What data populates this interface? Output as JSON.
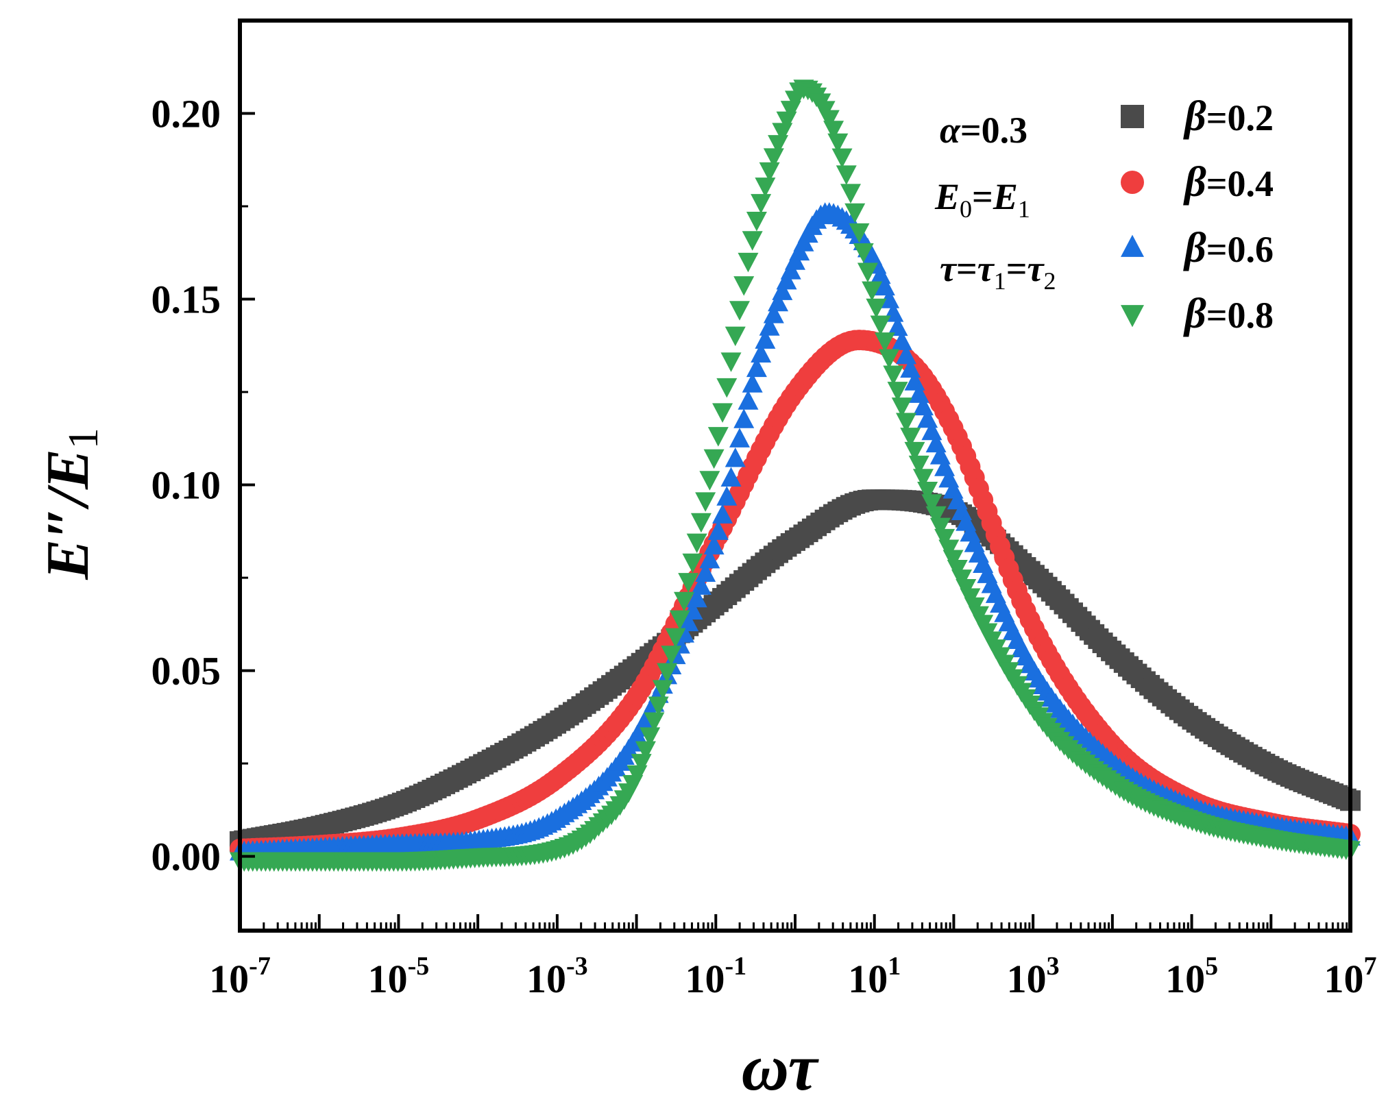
{
  "chart_data": {
    "type": "scatter",
    "title": "",
    "xlabel": "ωτ",
    "ylabel": "E″/E1",
    "xscale": "log10",
    "xlim_exp": [
      -7,
      7
    ],
    "ylim": [
      -0.02,
      0.225
    ],
    "x_ticks": [
      {
        "base": "10",
        "exp": "-7",
        "value_exp": -7
      },
      {
        "base": "10",
        "exp": "-5",
        "value_exp": -5
      },
      {
        "base": "10",
        "exp": "-3",
        "value_exp": -3
      },
      {
        "base": "10",
        "exp": "-1",
        "value_exp": -1
      },
      {
        "base": "10",
        "exp": "1",
        "value_exp": 1
      },
      {
        "base": "10",
        "exp": "3",
        "value_exp": 3
      },
      {
        "base": "10",
        "exp": "5",
        "value_exp": 5
      },
      {
        "base": "10",
        "exp": "7",
        "value_exp": 7
      }
    ],
    "y_ticks": [
      {
        "label": "0.00",
        "value": 0.0
      },
      {
        "label": "0.05",
        "value": 0.05
      },
      {
        "label": "0.10",
        "value": 0.1
      },
      {
        "label": "0.15",
        "value": 0.15
      },
      {
        "label": "0.20",
        "value": 0.2
      }
    ],
    "legend_position": "top-right",
    "annotations": {
      "alpha": {
        "symbol": "α",
        "text": "=0.3"
      },
      "moduli": {
        "a": "E",
        "a_sub": "0",
        "eq": "=",
        "b": "E",
        "b_sub": "1"
      },
      "tau": {
        "a": "τ",
        "eq1": "=",
        "b": "τ",
        "b_sub": "1",
        "eq2": "=",
        "c": "τ",
        "c_sub": "2"
      }
    },
    "series": [
      {
        "name": "β=0.2",
        "symbol": "β",
        "value_text": "=0.2",
        "marker": "square",
        "color": "#4a4a4a",
        "points": [
          [
            -7,
            0.004
          ],
          [
            -6,
            0.008
          ],
          [
            -5,
            0.014
          ],
          [
            -4,
            0.024
          ],
          [
            -3,
            0.036
          ],
          [
            -2,
            0.051
          ],
          [
            -1,
            0.068
          ],
          [
            0,
            0.085
          ],
          [
            1,
            0.096
          ],
          [
            2,
            0.093
          ],
          [
            3,
            0.076
          ],
          [
            4,
            0.055
          ],
          [
            5,
            0.037
          ],
          [
            6,
            0.024
          ],
          [
            7,
            0.015
          ]
        ]
      },
      {
        "name": "β=0.4",
        "symbol": "β",
        "value_text": "=0.4",
        "marker": "circle",
        "color": "#ef3e3e",
        "points": [
          [
            -7,
            0.002
          ],
          [
            -6,
            0.003
          ],
          [
            -5,
            0.005
          ],
          [
            -4,
            0.01
          ],
          [
            -3,
            0.021
          ],
          [
            -2,
            0.043
          ],
          [
            -1,
            0.085
          ],
          [
            0,
            0.125
          ],
          [
            0.8,
            0.139
          ],
          [
            1.5,
            0.132
          ],
          [
            2,
            0.115
          ],
          [
            3,
            0.062
          ],
          [
            4,
            0.03
          ],
          [
            5,
            0.015
          ],
          [
            6,
            0.009
          ],
          [
            7,
            0.006
          ]
        ]
      },
      {
        "name": "β=0.6",
        "symbol": "β",
        "value_text": "=0.6",
        "marker": "triangle-up",
        "color": "#1a6fdf",
        "points": [
          [
            -7,
            0.001
          ],
          [
            -6,
            0.002
          ],
          [
            -5,
            0.003
          ],
          [
            -4,
            0.004
          ],
          [
            -3,
            0.01
          ],
          [
            -2,
            0.032
          ],
          [
            -1,
            0.085
          ],
          [
            -0.5,
            0.13
          ],
          [
            0,
            0.16
          ],
          [
            0.4,
            0.173
          ],
          [
            1,
            0.16
          ],
          [
            1.5,
            0.128
          ],
          [
            2,
            0.098
          ],
          [
            3,
            0.05
          ],
          [
            4,
            0.025
          ],
          [
            5,
            0.013
          ],
          [
            6,
            0.008
          ],
          [
            7,
            0.005
          ]
        ]
      },
      {
        "name": "β=0.8",
        "symbol": "β",
        "value_text": "=0.8",
        "marker": "triangle-down",
        "color": "#35a853",
        "points": [
          [
            -7,
            -0.001
          ],
          [
            -6,
            -0.001
          ],
          [
            -5,
            -0.001
          ],
          [
            -4,
            0.0
          ],
          [
            -3,
            0.002
          ],
          [
            -2.5,
            0.008
          ],
          [
            -2,
            0.022
          ],
          [
            -1.5,
            0.06
          ],
          [
            -1,
            0.11
          ],
          [
            -0.5,
            0.17
          ],
          [
            0,
            0.204
          ],
          [
            0.1,
            0.207
          ],
          [
            0.5,
            0.195
          ],
          [
            1,
            0.15
          ],
          [
            1.5,
            0.11
          ],
          [
            2,
            0.08
          ],
          [
            3,
            0.04
          ],
          [
            4,
            0.02
          ],
          [
            5,
            0.01
          ],
          [
            6,
            0.005
          ],
          [
            7,
            0.002
          ]
        ]
      }
    ]
  }
}
